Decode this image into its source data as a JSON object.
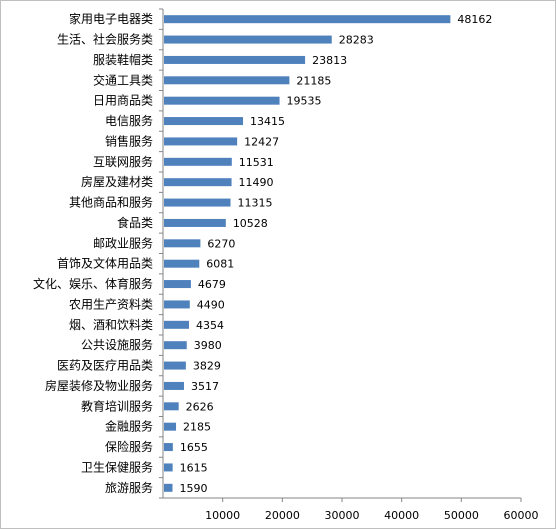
{
  "chart_data": {
    "type": "bar",
    "orientation": "horizontal",
    "categories": [
      "家用电子电器类",
      "生活、社会服务类",
      "服装鞋帽类",
      "交通工具类",
      "日用商品类",
      "电信服务",
      "销售服务",
      "互联网服务",
      "房屋及建材类",
      "其他商品和服务",
      "食品类",
      "邮政业服务",
      "首饰及文体用品类",
      "文化、娱乐、体育服务",
      "农用生产资料类",
      "烟、酒和饮料类",
      "公共设施服务",
      "医药及医疗用品类",
      "房屋装修及物业服务",
      "教育培训服务",
      "金融服务",
      "保险服务",
      "卫生保健服务",
      "旅游服务"
    ],
    "values": [
      48162,
      28283,
      23813,
      21185,
      19535,
      13415,
      12427,
      11531,
      11490,
      11315,
      10528,
      6270,
      6081,
      4679,
      4490,
      4354,
      3980,
      3829,
      3517,
      2626,
      2185,
      1655,
      1615,
      1590
    ],
    "xlim": [
      0,
      60000
    ],
    "xticks": [
      "10000",
      "20000",
      "30000",
      "40000",
      "50000",
      "60000"
    ],
    "xtick_values": [
      10000,
      20000,
      30000,
      40000,
      50000,
      60000
    ],
    "grid": false,
    "legend": "none",
    "bar_color": "#4f81bd",
    "title": "",
    "xlabel": "",
    "ylabel": ""
  }
}
